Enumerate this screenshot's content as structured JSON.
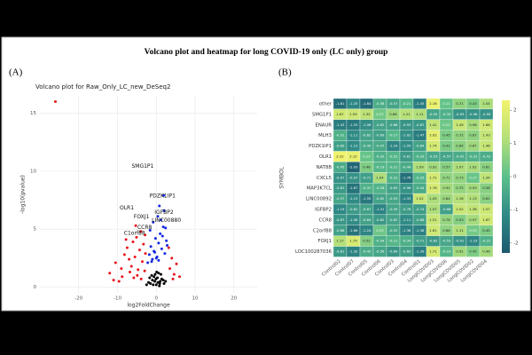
{
  "title": "Volcano plot and heatmap for long COVID-19 only (LC only) group",
  "panels": [
    "(A)",
    "(B)"
  ],
  "chart_data": [
    {
      "type": "scatter",
      "title": "Volcano plot for Raw_Only_LC_new_DeSeq2",
      "xlabel": "log2FoldChange",
      "ylabel": "-log10(pvalue)",
      "xlim": [
        -30,
        26
      ],
      "ylim": [
        -0.5,
        16.5
      ],
      "xticks": [
        -20,
        -10,
        0,
        10,
        20
      ],
      "yticks": [
        0,
        5,
        10,
        15
      ],
      "grid": true,
      "series": [
        {
          "color": "#000000",
          "x": [
            -1.5,
            -1,
            -0.6,
            -0.3,
            0,
            0.3,
            0.6,
            1,
            1.4,
            -2,
            2,
            -0.8,
            0.8,
            -1.2,
            1.2,
            -0.4,
            0.4,
            0.1,
            -0.1,
            1.8,
            -2.5,
            2.4,
            -1.7,
            0.9
          ],
          "y": [
            0.3,
            0.6,
            0.9,
            1.1,
            0.2,
            0.8,
            1.2,
            0.5,
            0.7,
            0.4,
            0.3,
            0.2,
            0.1,
            1,
            1.1,
            0.5,
            0.4,
            1.3,
            0.7,
            0.6,
            0.2,
            0.5,
            0.8,
            0.3
          ]
        },
        {
          "color": "#e8141c",
          "x": [
            -26,
            -12,
            -10.5,
            -9,
            -8.2,
            -7.5,
            -7,
            -6.4,
            -6,
            -5.5,
            -5.1,
            -4.7,
            -4.3,
            -4,
            -3.6,
            -3.3,
            -3,
            -2.8,
            -8.8,
            -6.8,
            -5.8,
            -4.9,
            -3.9,
            -11,
            -9.6,
            3.5,
            4,
            4.6,
            5.2,
            6,
            3.2,
            4.3,
            -7.8,
            -5.3,
            -2.9
          ],
          "y": [
            16,
            1.2,
            2.1,
            1.6,
            2.8,
            3.4,
            2.4,
            1.8,
            3.9,
            2.6,
            4.3,
            1.5,
            3.2,
            4.8,
            2.2,
            3.7,
            1.4,
            2.9,
            0.9,
            1.3,
            0.8,
            1,
            0.7,
            0.6,
            0.5,
            1.6,
            2.5,
            1.1,
            2,
            0.9,
            3.4,
            0.7,
            4.1,
            5.3,
            4.5
          ]
        },
        {
          "color": "#1428e0",
          "x": [
            -2.2,
            -1.8,
            -1.4,
            -1,
            -0.6,
            -0.2,
            0.2,
            0.6,
            1,
            1.4,
            1.8,
            2.2,
            2.6,
            -1.6,
            -0.8,
            0.4,
            1.2,
            2,
            2.8,
            -1.2,
            0,
            0.8,
            1.6,
            2.4,
            -0.4,
            0.6,
            1.9
          ],
          "y": [
            2.1,
            2.8,
            3.5,
            2.4,
            3.1,
            4.2,
            2.6,
            3.8,
            4.6,
            3.3,
            5.2,
            2.9,
            4,
            4.9,
            5.6,
            6.1,
            5.8,
            6.6,
            3.6,
            2.2,
            2.5,
            7,
            4.4,
            5.1,
            3,
            2.3,
            7.9
          ]
        }
      ],
      "labels": [
        {
          "text": "SMG1P1",
          "x": -3.5,
          "y": 10.2
        },
        {
          "text": "PDZK1IP1",
          "x": 1.6,
          "y": 7.6
        },
        {
          "text": "OLR1",
          "x": -7.6,
          "y": 6.6
        },
        {
          "text": "IGFBP2",
          "x": 2,
          "y": 6.2
        },
        {
          "text": "LINC00880",
          "x": 2.6,
          "y": 5.5
        },
        {
          "text": "FOXJ1",
          "x": -3.8,
          "y": 5.8
        },
        {
          "text": "CCR8",
          "x": -3,
          "y": 4.9
        },
        {
          "text": "C1orf88",
          "x": -5.6,
          "y": 4.4
        }
      ]
    },
    {
      "type": "heatmap",
      "ylabel": "SYMBOL",
      "rows": [
        "other",
        "SMG1P1",
        "ENAUR",
        "MLH3",
        "PDZK1IP1",
        "OLR1",
        "NAT8B",
        "CXCL5",
        "MAP3K7CL",
        "LINC00892",
        "IGFBP2",
        "CCR8",
        "C2orf88",
        "FOXJ1",
        "LOC100287036"
      ],
      "columns": [
        "Control02",
        "Control07",
        "Control05",
        "Control06",
        "Control03",
        "Control04",
        "Control01",
        "LongCOVID03",
        "LongCOVID06",
        "LongCOVID05",
        "LongCOVID02",
        "LongCOVID04"
      ],
      "values": [
        [
          -1.81,
          -1.25,
          -1.84,
          -0.38,
          -0.57,
          -0.21,
          -1.45,
          2.16,
          0.11,
          0.71,
          0.43,
          1.04
        ],
        [
          1.67,
          1.59,
          1.32,
          0.27,
          0.86,
          1.21,
          1.11,
          -0.55,
          -0.35,
          -0.93,
          -0.96,
          -0.95
        ],
        [
          -1.43,
          -1.53,
          -1.06,
          -0.62,
          -0.68,
          -0.93,
          -0.87,
          1.41,
          0.23,
          1.49,
          0.98,
          1.66
        ],
        [
          -0.31,
          -1.11,
          -0.62,
          -0.69,
          -0.17,
          -1.02,
          -1.47,
          2.02,
          0.45,
          0.72,
          0.67,
          1.43
        ],
        [
          -0.69,
          -1.13,
          -0.49,
          -0.47,
          -1.24,
          -1.09,
          -0.64,
          1.74,
          0.41,
          0.64,
          0.87,
          1.46
        ],
        [
          2.22,
          2.12,
          0.13,
          -0.32,
          -0.22,
          -0.81,
          -0.33,
          -0.53,
          -0.57,
          -0.42,
          -0.31,
          -0.41
        ],
        [
          -0.45,
          -2.03,
          0.46,
          -0.19,
          -0.21,
          -0.44,
          1.09,
          0.92,
          0.57,
          1.07,
          1.02,
          0.61
        ],
        [
          -0.97,
          -0.97,
          -0.71,
          1.04,
          -0.31,
          -1.76,
          -0.25,
          1.71,
          0.71,
          0.73,
          0.17,
          1.34
        ],
        [
          -0.81,
          -1.67,
          -0.31,
          -0.28,
          -0.63,
          -0.96,
          -0.44,
          1.76,
          0.92,
          0.75,
          0.93,
          0.58
        ],
        [
          -0.57,
          -1.13,
          -1.55,
          -0.62,
          -0.53,
          -1.33,
          1.52,
          1.05,
          0.84,
          1.16,
          1.13,
          0.61
        ],
        [
          -1.19,
          -0.82,
          -0.67,
          -1.31,
          -0.59,
          -0.76,
          -0.74,
          1.07,
          -0.68,
          1.52,
          1.38,
          1.57
        ],
        [
          -0.87,
          -1.08,
          -0.64,
          -0.82,
          -0.62,
          -1.11,
          -0.66,
          1.51,
          0.76,
          0.53,
          0.97,
          1.67
        ],
        [
          -0.68,
          -1.66,
          -1.24,
          0.23,
          -0.52,
          -1.36,
          -1.36,
          1.61,
          0.66,
          1.11,
          0.33,
          0.45
        ],
        [
          1.17,
          1.79,
          0.52,
          -0.34,
          -0.21,
          -0.34,
          -0.71,
          -0.82,
          -0.53,
          -0.91,
          -1.23,
          -0.31
        ],
        [
          -0.81,
          -1.32,
          -0.42,
          -0.56,
          -0.89,
          -0.63,
          -1.39,
          1.71,
          -0.19,
          0.91,
          0.45,
          0.96
        ]
      ],
      "colorscale": [
        "#1d5a6e",
        "#2f8a86",
        "#5cc08a",
        "#b4e07a",
        "#f3f36c"
      ],
      "zlim": [
        -2.3,
        2.3
      ],
      "zticks": [
        -2,
        -1,
        0,
        1,
        2
      ]
    }
  ]
}
